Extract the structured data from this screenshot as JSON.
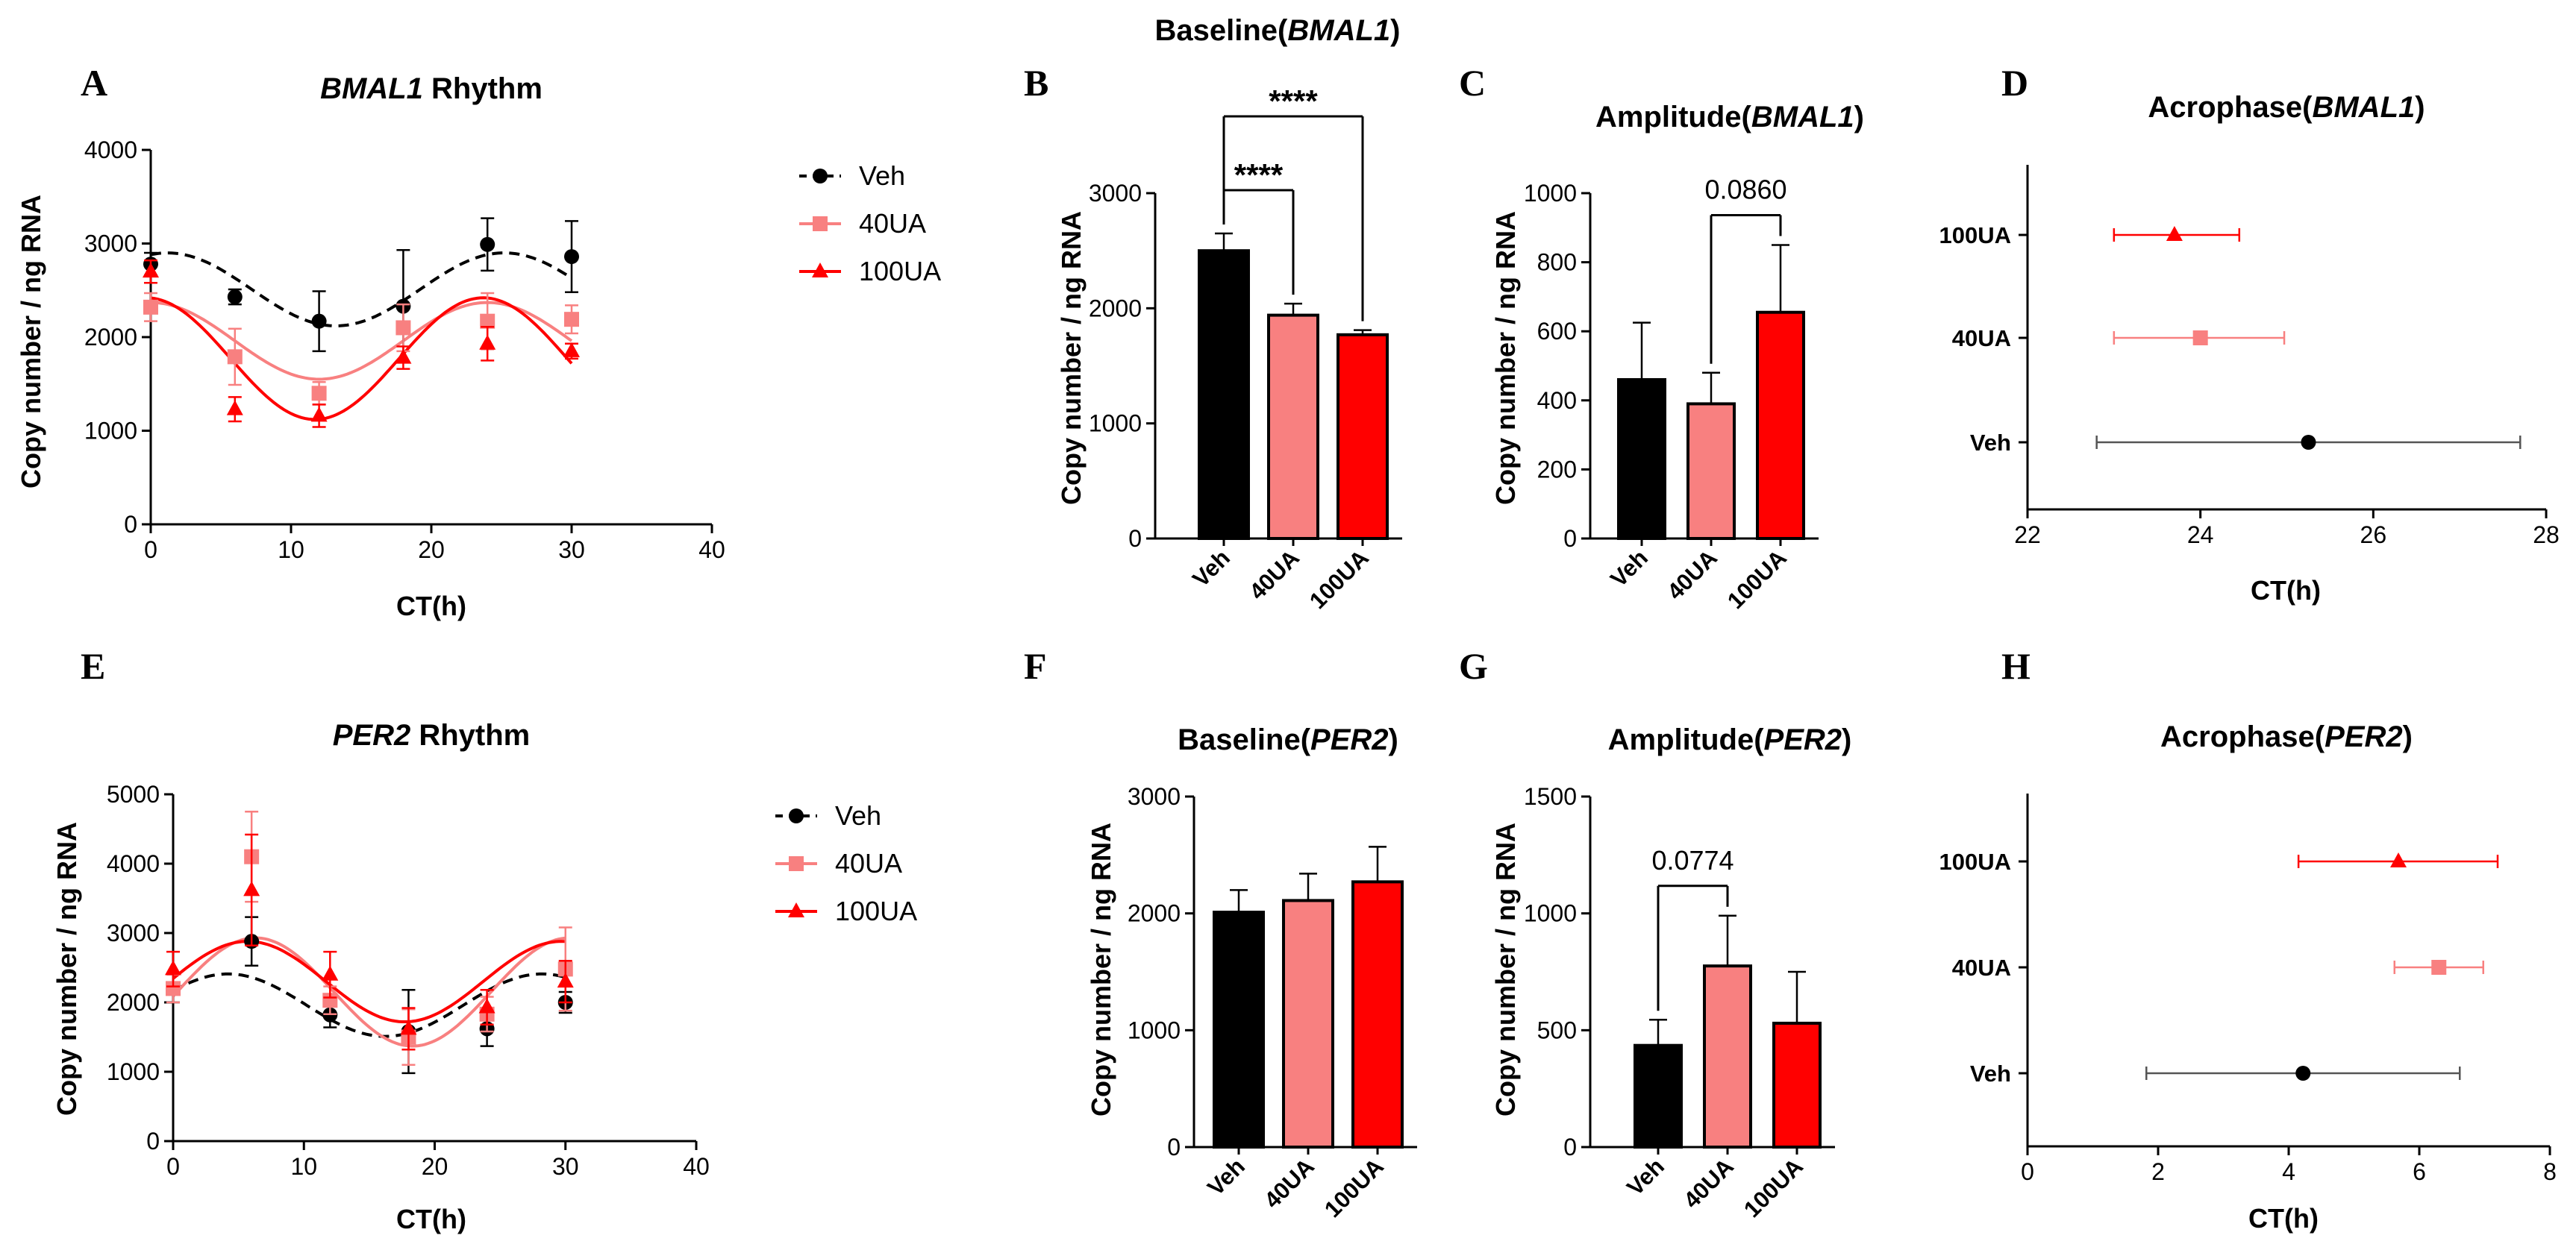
{
  "figure": {
    "top_title": {
      "pre": "Baseline(",
      "gene": "BMAL1",
      "post": ")"
    }
  },
  "colors": {
    "Veh": "#000000",
    "40UA": "#f88080",
    "100UA": "#ff0000"
  },
  "legend_series": [
    "Veh",
    "40UA",
    "100UA"
  ],
  "chart_data": [
    {
      "id": "A",
      "type": "scatter",
      "title": {
        "gene": "BMAL1",
        "rest": " Rhythm"
      },
      "xlabel": "CT(h)",
      "ylabel": "Copy number / ng RNA",
      "xlim": [
        0,
        40
      ],
      "ylim": [
        0,
        4000
      ],
      "xticks": [
        "0",
        "10",
        "20",
        "30",
        "40"
      ],
      "yticks": [
        "0",
        "1000",
        "2000",
        "3000",
        "4000"
      ],
      "x": [
        0,
        6,
        12,
        18,
        24,
        30
      ],
      "series": [
        {
          "name": "Veh",
          "values": [
            2780,
            2430,
            2170,
            2330,
            2990,
            2860
          ],
          "err": [
            120,
            80,
            320,
            600,
            280,
            380
          ],
          "fit": {
            "mesor": 2510,
            "amp": 390,
            "period": 24,
            "acro": 25.2
          }
        },
        {
          "name": "40UA",
          "values": [
            2320,
            1790,
            1400,
            2100,
            2170,
            2190
          ],
          "err": [
            150,
            300,
            120,
            250,
            300,
            150
          ],
          "fit": {
            "mesor": 1960,
            "amp": 410,
            "period": 24,
            "acro": 24.0
          }
        },
        {
          "name": "100UA",
          "values": [
            2700,
            1230,
            1160,
            1780,
            1930,
            1850
          ],
          "err": [
            120,
            130,
            120,
            120,
            180,
            80
          ],
          "fit": {
            "mesor": 1770,
            "amp": 650,
            "period": 24,
            "acro": 23.7
          }
        }
      ]
    },
    {
      "id": "B",
      "type": "bar",
      "ylabel": "Copy number / ng RNA",
      "ylim": [
        0,
        3000
      ],
      "yticks": [
        "0",
        "1000",
        "2000",
        "3000"
      ],
      "categories": [
        "Veh",
        "40UA",
        "100UA"
      ],
      "values": [
        2500,
        1940,
        1770
      ],
      "err": [
        150,
        100,
        40
      ],
      "annotations": [
        {
          "from": 0,
          "to": 1,
          "label": "****"
        },
        {
          "from": 0,
          "to": 2,
          "label": "****"
        }
      ]
    },
    {
      "id": "C",
      "type": "bar",
      "title": {
        "pre": "Amplitude(",
        "gene": "BMAL1",
        "post": ")"
      },
      "ylabel": "Copy number / ng RNA",
      "ylim": [
        0,
        1000
      ],
      "yticks": [
        "0",
        "200",
        "400",
        "600",
        "800",
        "1000"
      ],
      "categories": [
        "Veh",
        "40UA",
        "100UA"
      ],
      "values": [
        460,
        390,
        655
      ],
      "err": [
        165,
        90,
        195
      ],
      "annotations": [
        {
          "from": 1,
          "to": 2,
          "label": "0.0860"
        }
      ]
    },
    {
      "id": "D",
      "type": "scatter",
      "title": {
        "pre": "Acrophase(",
        "gene": "BMAL1",
        "post": ")"
      },
      "xlabel": "CT(h)",
      "xlim": [
        22,
        28
      ],
      "xticks": [
        "22",
        "24",
        "26",
        "28"
      ],
      "categories": [
        "100UA",
        "40UA",
        "Veh"
      ],
      "values": [
        23.7,
        24.0,
        25.25
      ],
      "lo": [
        23.0,
        23.0,
        22.8
      ],
      "hi": [
        24.45,
        24.97,
        27.7
      ]
    },
    {
      "id": "E",
      "type": "scatter",
      "title": {
        "gene": "PER2",
        "rest": " Rhythm"
      },
      "xlabel": "CT(h)",
      "ylabel": "Copy number / ng RNA",
      "xlim": [
        0,
        40
      ],
      "ylim": [
        0,
        5000
      ],
      "xticks": [
        "0",
        "10",
        "20",
        "30",
        "40"
      ],
      "yticks": [
        "0",
        "1000",
        "2000",
        "3000",
        "4000",
        "5000"
      ],
      "x": [
        0,
        6,
        12,
        18,
        24,
        30
      ],
      "series": [
        {
          "name": "Veh",
          "values": [
            2200,
            2880,
            1820,
            1580,
            1620,
            2000
          ],
          "err": [
            200,
            350,
            180,
            600,
            250,
            150
          ],
          "fit": {
            "mesor": 1960,
            "amp": 450,
            "period": 24,
            "acro": 4.2
          }
        },
        {
          "name": "40UA",
          "values": [
            2200,
            4100,
            2030,
            1500,
            1830,
            2480
          ],
          "err": [
            200,
            650,
            200,
            400,
            250,
            600
          ],
          "fit": {
            "mesor": 2150,
            "amp": 780,
            "period": 24,
            "acro": 6.3
          }
        },
        {
          "name": "100UA",
          "values": [
            2480,
            3620,
            2400,
            1620,
            1930,
            2300
          ],
          "err": [
            250,
            800,
            330,
            300,
            250,
            300
          ],
          "fit": {
            "mesor": 2300,
            "amp": 580,
            "period": 24,
            "acro": 5.7
          }
        }
      ]
    },
    {
      "id": "F",
      "type": "bar",
      "title": {
        "pre": "Baseline(",
        "gene": "PER2",
        "post": ")"
      },
      "ylabel": "Copy number / ng RNA",
      "ylim": [
        0,
        3000
      ],
      "yticks": [
        "0",
        "1000",
        "2000",
        "3000"
      ],
      "categories": [
        "Veh",
        "40UA",
        "100UA"
      ],
      "values": [
        2010,
        2110,
        2270
      ],
      "err": [
        190,
        230,
        300
      ]
    },
    {
      "id": "G",
      "type": "bar",
      "title": {
        "pre": "Amplitude(",
        "gene": "PER2",
        "post": ")"
      },
      "ylabel": "Copy number / ng RNA",
      "ylim": [
        0,
        1500
      ],
      "yticks": [
        "0",
        "500",
        "1000",
        "1500"
      ],
      "categories": [
        "Veh",
        "40UA",
        "100UA"
      ],
      "values": [
        435,
        775,
        530
      ],
      "err": [
        110,
        215,
        220
      ],
      "annotations": [
        {
          "from": 0,
          "to": 1,
          "label": "0.0774"
        }
      ]
    },
    {
      "id": "H",
      "type": "scatter",
      "title": {
        "pre": "Acrophase(",
        "gene": "PER2",
        "post": ")"
      },
      "xlabel": "CT(h)",
      "xlim": [
        0,
        8
      ],
      "xticks": [
        "0",
        "2",
        "4",
        "6",
        "8"
      ],
      "categories": [
        "100UA",
        "40UA",
        "Veh"
      ],
      "values": [
        5.68,
        6.3,
        4.22
      ],
      "lo": [
        4.15,
        5.62,
        1.82
      ],
      "hi": [
        7.2,
        6.98,
        6.62
      ]
    }
  ]
}
